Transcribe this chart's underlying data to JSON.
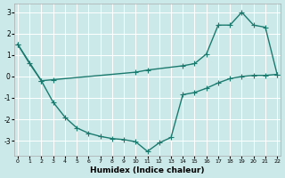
{
  "xlabel": "Humidex (Indice chaleur)",
  "xlim": [
    -0.3,
    22.3
  ],
  "ylim": [
    -3.7,
    3.4
  ],
  "xticks": [
    0,
    1,
    2,
    3,
    4,
    5,
    6,
    7,
    8,
    9,
    10,
    11,
    12,
    13,
    14,
    15,
    16,
    17,
    18,
    19,
    20,
    21,
    22
  ],
  "yticks": [
    -3,
    -2,
    -1,
    0,
    1,
    2,
    3
  ],
  "bg_color": "#cce9e9",
  "grid_color": "#ffffff",
  "line_color": "#1a7a6e",
  "curve1_x": [
    0,
    1,
    2,
    3,
    4,
    5,
    6,
    7,
    8,
    9,
    10,
    11,
    12,
    13,
    14,
    15,
    16,
    17,
    18,
    19,
    20,
    21,
    22
  ],
  "curve1_y": [
    1.5,
    0.6,
    -0.2,
    -1.2,
    -1.9,
    -2.4,
    -2.65,
    -2.8,
    -2.9,
    -2.95,
    -3.05,
    -3.5,
    -3.1,
    -2.85,
    -0.85,
    -0.75,
    -0.55,
    -0.3,
    -0.1,
    0.0,
    0.05,
    0.05,
    0.1
  ],
  "curve2_x": [
    0,
    2,
    3,
    10,
    11,
    14,
    15,
    16,
    17,
    18,
    19,
    20,
    21,
    22
  ],
  "curve2_y": [
    1.5,
    -0.2,
    -0.15,
    0.2,
    0.3,
    0.5,
    0.6,
    1.05,
    2.4,
    2.4,
    3.0,
    2.4,
    2.3,
    0.1
  ],
  "linewidth": 1.0,
  "markersize": 4.0,
  "markeredgewidth": 0.8
}
